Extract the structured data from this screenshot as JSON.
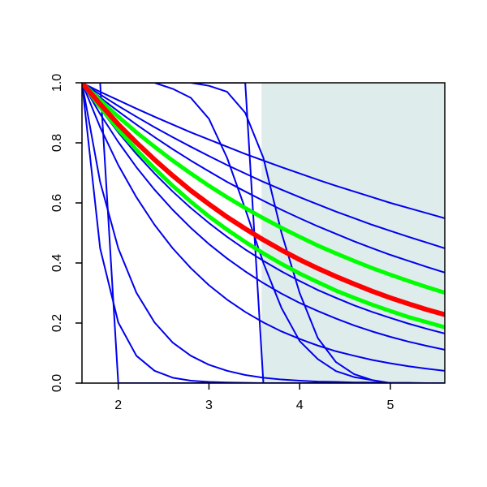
{
  "chart_data": {
    "type": "line",
    "xlim": [
      1.6,
      5.6
    ],
    "ylim": [
      0,
      1
    ],
    "xticks": [
      2,
      3,
      4,
      5
    ],
    "yticks": [
      {
        "value": 0,
        "label": "0.0"
      },
      0.2,
      0.4,
      0.6,
      0.8,
      {
        "value": 1,
        "label": "1.0"
      }
    ],
    "shade_from": 3.58,
    "shade_color": "#dfecec",
    "x": [
      1.6,
      1.8,
      2.0,
      2.2,
      2.4,
      2.6,
      2.8,
      3.0,
      3.2,
      3.4,
      3.6,
      3.8,
      4.0,
      4.2,
      4.4,
      4.6,
      4.8,
      5.0,
      5.2,
      5.4,
      5.6
    ],
    "series": [
      {
        "color": "#0000ee",
        "width": 2,
        "values": [
          1,
          0.97,
          0.942,
          0.914,
          0.887,
          0.861,
          0.835,
          0.811,
          0.787,
          0.763,
          0.741,
          0.719,
          0.698,
          0.677,
          0.657,
          0.638,
          0.619,
          0.6,
          0.583,
          0.566,
          0.549
        ]
      },
      {
        "color": "#0000ee",
        "width": 2,
        "values": [
          1,
          0.961,
          0.923,
          0.887,
          0.852,
          0.819,
          0.787,
          0.756,
          0.726,
          0.698,
          0.67,
          0.644,
          0.619,
          0.595,
          0.571,
          0.549,
          0.527,
          0.507,
          0.487,
          0.468,
          0.449
        ]
      },
      {
        "color": "#0000ee",
        "width": 2,
        "values": [
          1,
          0.951,
          0.905,
          0.861,
          0.819,
          0.779,
          0.741,
          0.705,
          0.67,
          0.638,
          0.607,
          0.577,
          0.549,
          0.522,
          0.497,
          0.472,
          0.449,
          0.427,
          0.407,
          0.387,
          0.368
        ]
      },
      {
        "color": "#0000ee",
        "width": 2,
        "values": [
          1,
          0.914,
          0.835,
          0.763,
          0.698,
          0.638,
          0.583,
          0.533,
          0.487,
          0.445,
          0.407,
          0.372,
          0.34,
          0.31,
          0.284,
          0.259,
          0.237,
          0.217,
          0.198,
          0.181,
          0.165
        ]
      },
      {
        "color": "#0000ee",
        "width": 2,
        "values": [
          1,
          0.896,
          0.803,
          0.719,
          0.644,
          0.577,
          0.517,
          0.463,
          0.415,
          0.372,
          0.333,
          0.298,
          0.267,
          0.24,
          0.215,
          0.192,
          0.172,
          0.154,
          0.138,
          0.124,
          0.111
        ]
      },
      {
        "color": "#0000ee",
        "width": 2,
        "values": [
          1,
          0.852,
          0.726,
          0.619,
          0.527,
          0.449,
          0.383,
          0.326,
          0.278,
          0.237,
          0.202,
          0.172,
          0.147,
          0.125,
          0.106,
          0.091,
          0.077,
          0.066,
          0.056,
          0.048,
          0.041
        ]
      },
      {
        "color": "#0000ee",
        "width": 2,
        "values": [
          1,
          0.67,
          0.449,
          0.301,
          0.202,
          0.135,
          0.091,
          0.061,
          0.041,
          0.027,
          0.018,
          0.012,
          0.008,
          0.005,
          0.004,
          0.002,
          0.002,
          0.001,
          0.001,
          0,
          0
        ]
      },
      {
        "color": "#0000ee",
        "width": 2,
        "values": [
          1,
          0.449,
          0.202,
          0.091,
          0.041,
          0.018,
          0.008,
          0.004,
          0.002,
          0.001,
          0,
          0,
          0,
          0,
          0,
          0,
          0,
          0,
          0,
          0,
          0
        ]
      },
      {
        "color": "#0000ee",
        "width": 2,
        "values": [
          1,
          1,
          1,
          1,
          1,
          1,
          1,
          1,
          1,
          1,
          0,
          0,
          0,
          0,
          0,
          0,
          0,
          0,
          0,
          0,
          0
        ]
      },
      {
        "color": "#0000ee",
        "width": 2,
        "values": [
          1,
          1,
          0,
          0,
          0,
          0,
          0,
          0,
          0,
          0,
          0,
          0,
          0,
          0,
          0,
          0,
          0,
          0,
          0,
          0,
          0
        ]
      },
      {
        "color": "#0000ee",
        "width": 2,
        "values": [
          1,
          1,
          1,
          1,
          1,
          1,
          1,
          0.99,
          0.97,
          0.9,
          0.75,
          0.5,
          0.3,
          0.15,
          0.07,
          0.03,
          0.01,
          0,
          0,
          0,
          0
        ]
      },
      {
        "color": "#0000ee",
        "width": 2,
        "values": [
          1,
          1,
          1,
          1,
          1,
          0.98,
          0.95,
          0.88,
          0.75,
          0.58,
          0.4,
          0.25,
          0.14,
          0.08,
          0.04,
          0.02,
          0.01,
          0,
          0,
          0,
          0
        ]
      },
      {
        "color": "#00ff00",
        "width": 5,
        "values": [
          1,
          0.942,
          0.887,
          0.835,
          0.787,
          0.741,
          0.698,
          0.657,
          0.619,
          0.583,
          0.549,
          0.517,
          0.487,
          0.458,
          0.432,
          0.407,
          0.383,
          0.361,
          0.34,
          0.32,
          0.301
        ]
      },
      {
        "color": "#00ff00",
        "width": 5,
        "values": [
          1,
          0.919,
          0.845,
          0.777,
          0.715,
          0.657,
          0.604,
          0.555,
          0.511,
          0.47,
          0.432,
          0.397,
          0.365,
          0.336,
          0.308,
          0.284,
          0.261,
          0.24,
          0.22,
          0.203,
          0.186
        ]
      },
      {
        "color": "#ff0000",
        "width": 6,
        "values": [
          1,
          0.929,
          0.862,
          0.801,
          0.744,
          0.691,
          0.641,
          0.596,
          0.553,
          0.514,
          0.477,
          0.443,
          0.411,
          0.382,
          0.355,
          0.33,
          0.306,
          0.284,
          0.264,
          0.245,
          0.228
        ]
      }
    ]
  }
}
